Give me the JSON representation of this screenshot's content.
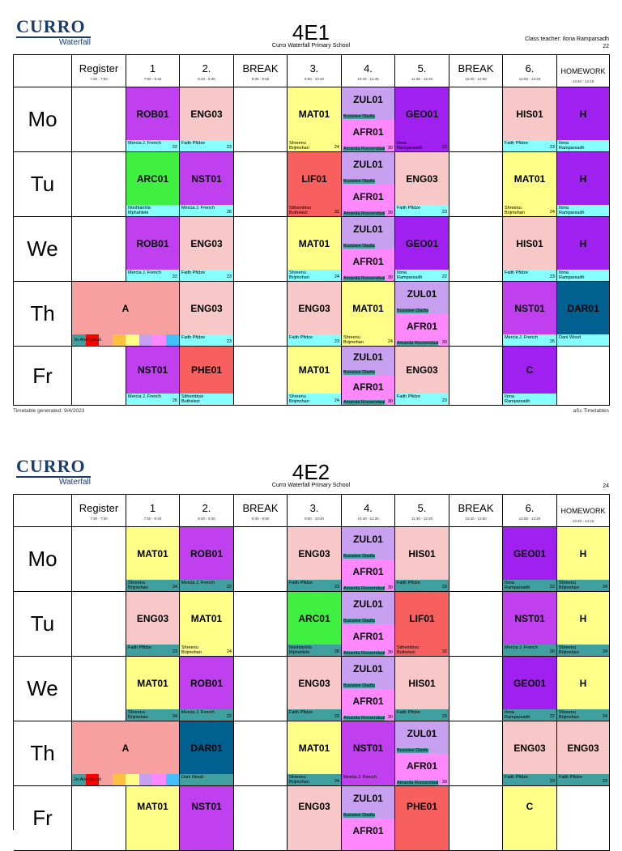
{
  "logo": {
    "main": "CURRO",
    "sub": "Waterfall"
  },
  "school": "Curro Waterfall Primary School",
  "columns": [
    {
      "label": "Register",
      "time": "7:30 - 7:50"
    },
    {
      "label": "1",
      "time": "7:50 - 8:40"
    },
    {
      "label": "2.",
      "time": "8:40 - 9:30"
    },
    {
      "label": "BREAK",
      "time": "9:30 - 9:50"
    },
    {
      "label": "3.",
      "time": "9:50 - 10:40"
    },
    {
      "label": "4.",
      "time": "10:40 - 11:30"
    },
    {
      "label": "5.",
      "time": "11:30 - 12:20"
    },
    {
      "label": "BREAK",
      "time": "12:20 - 12:50"
    },
    {
      "label": "6.",
      "time": "12:50 - 13:40"
    },
    {
      "label": "HOMEWORK",
      "time": "13:40 - 14:15"
    }
  ],
  "days": [
    "Mo",
    "Tu",
    "We",
    "Th",
    "Fr"
  ],
  "timetables": [
    {
      "class_name": "4E1",
      "teacher_line": "Class teacher: Ilona Ramparsadh",
      "room_line": "22",
      "footer_left": "Timetable generated: 9/4/2023",
      "footer_right": "aSc Timetables"
    },
    {
      "class_name": "4E2",
      "teacher_line": "",
      "room_line": "24"
    }
  ],
  "colors": {
    "ROB": "#c040f0",
    "ENG": "#f8c8c8",
    "MAT": "#ffff88",
    "ZUL": "#c8a0f0",
    "AFR": "#ff88ff",
    "GEO": "#a020f0",
    "HIS": "#f8c8c8",
    "H": "#a020f0",
    "ARC": "#40f040",
    "NST": "#c040f0",
    "LIF": "#f86060",
    "DAR": "#006090",
    "PHE": "#f86060",
    "A": "#f8a0a0",
    "C": "#a020f0",
    "teacher_bar": "#88ffff",
    "teacher_bar_dark": "#40a0a0"
  }
}
